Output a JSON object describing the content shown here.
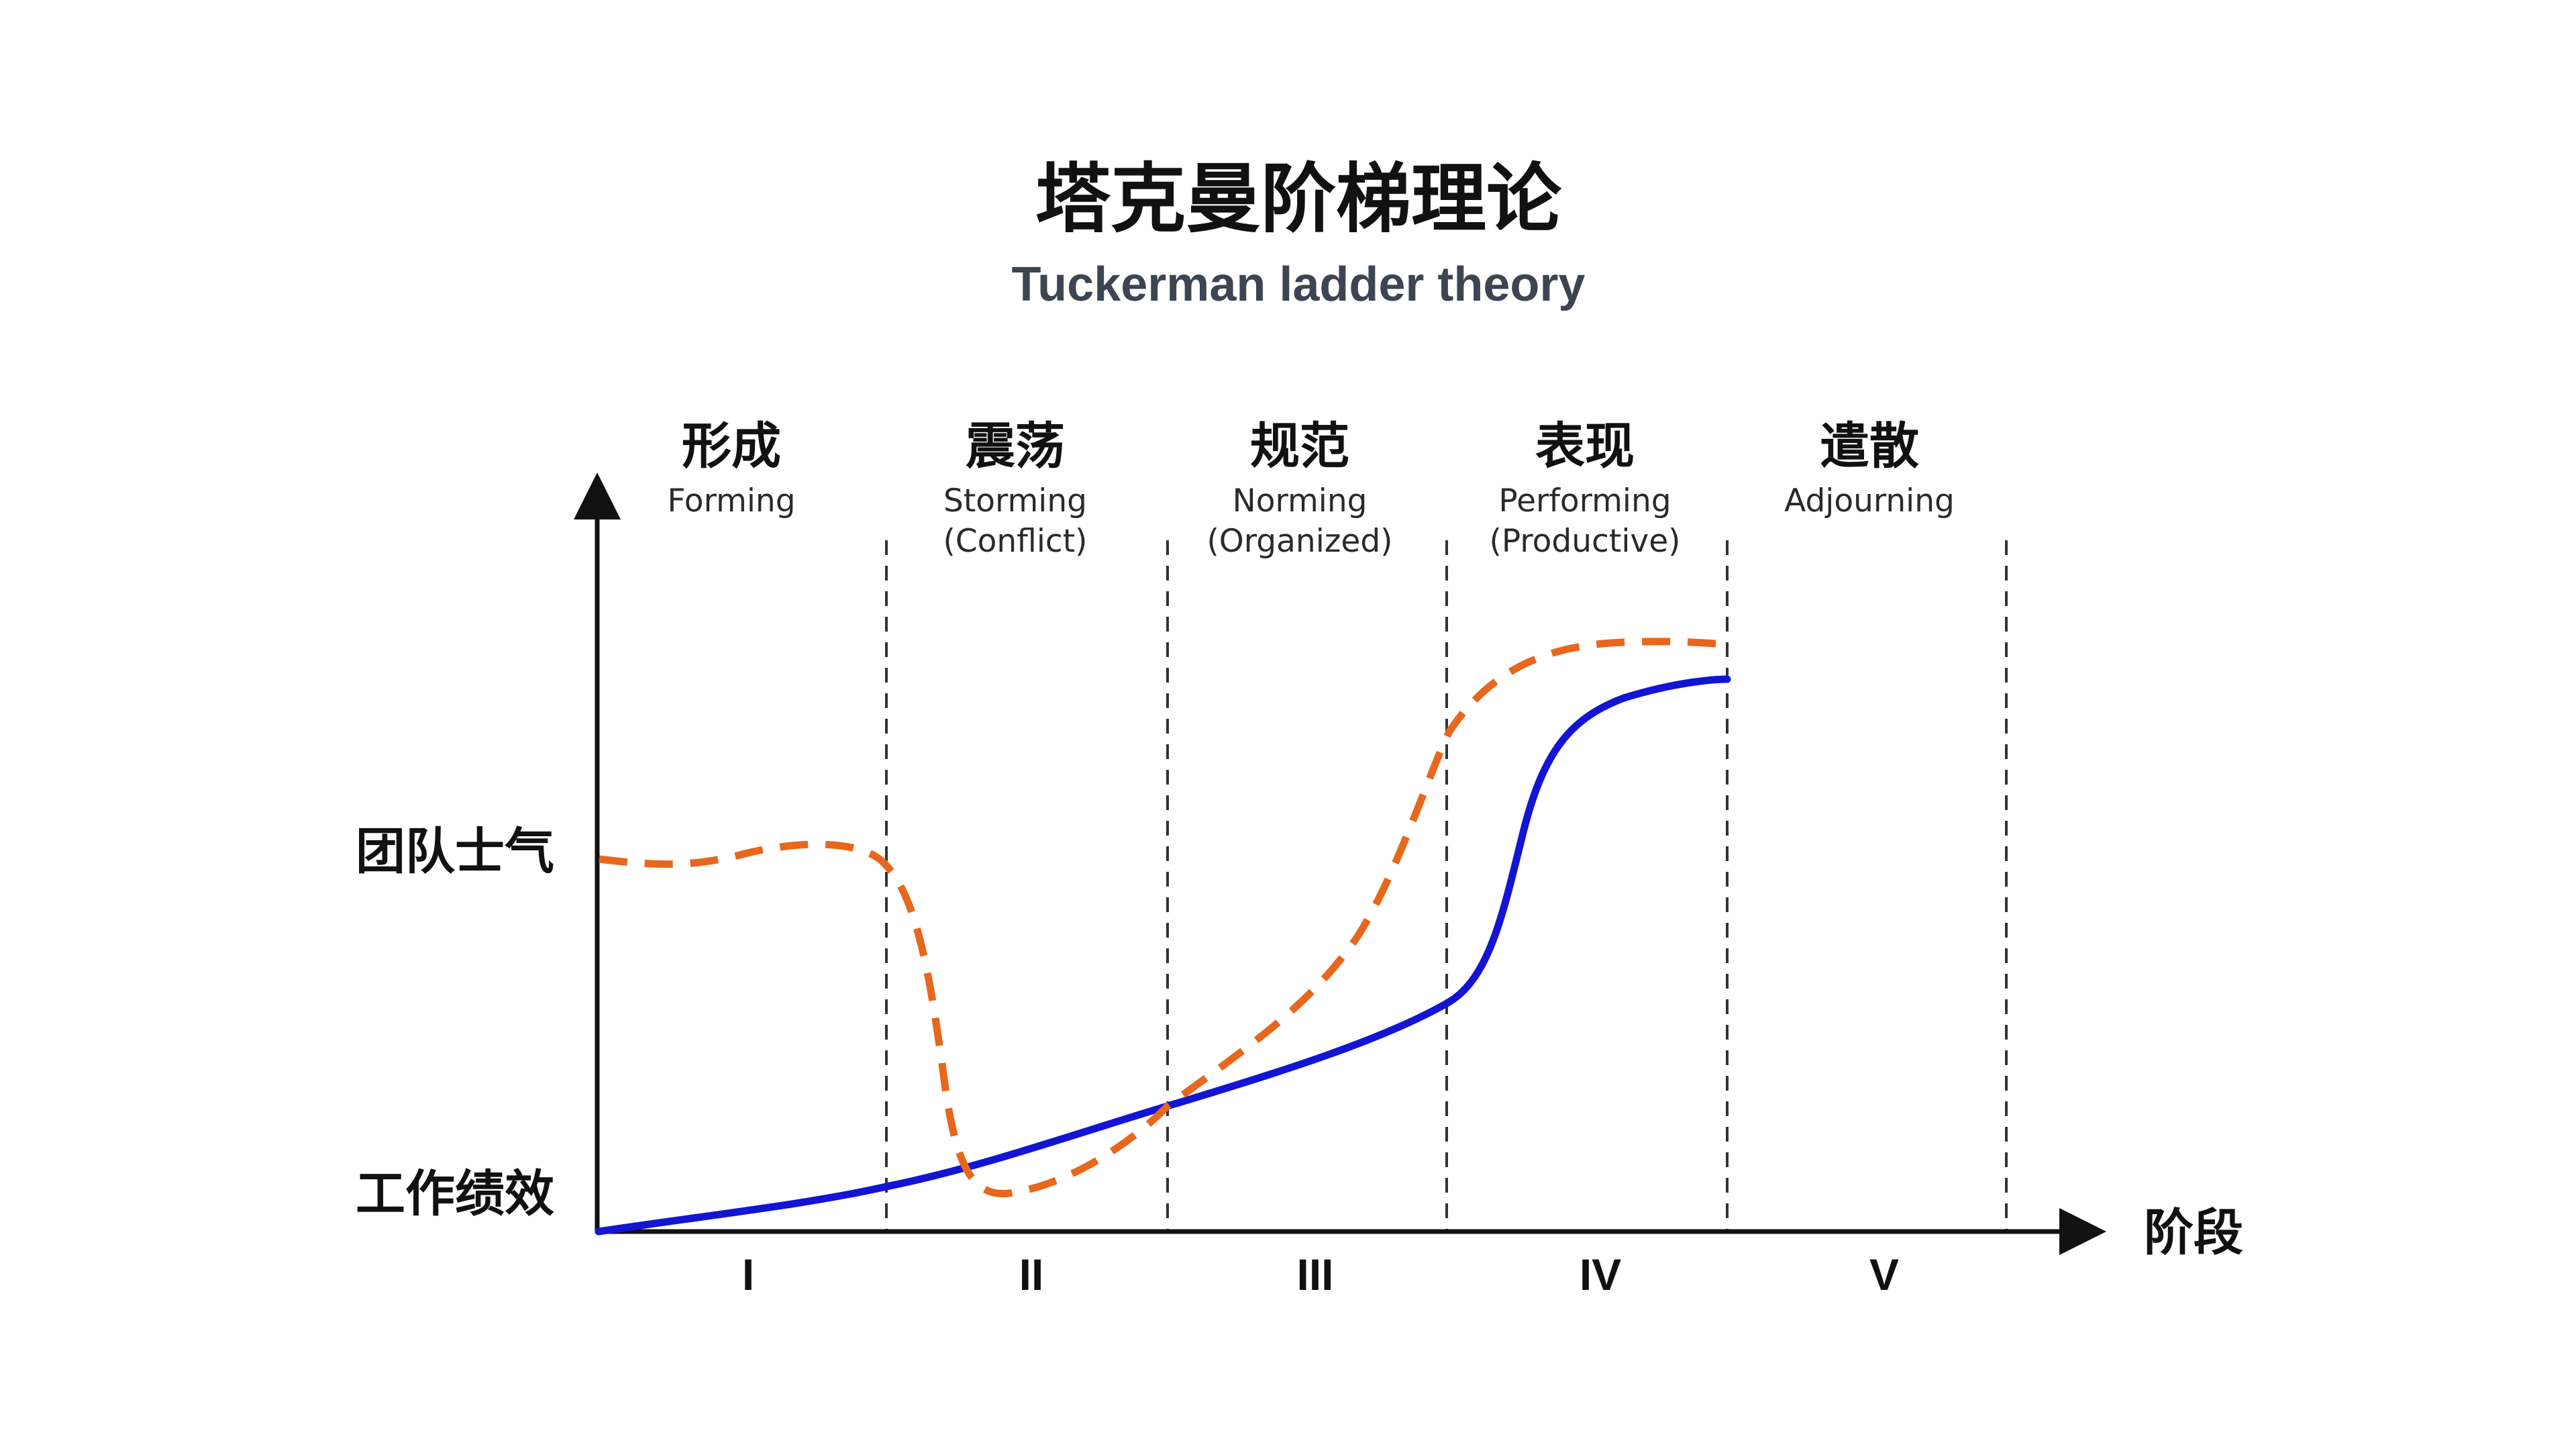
{
  "title_cn": "塔克曼阶梯理论",
  "title_en": "Tuckerman ladder theory",
  "x_axis_label": "阶段",
  "y_labels": {
    "morale": "团队士气",
    "performance": "工作绩效"
  },
  "stages": [
    {
      "roman": "I",
      "cn": "形成",
      "en1": "Forming",
      "en2": ""
    },
    {
      "roman": "II",
      "cn": "震荡",
      "en1": "Storming",
      "en2": "(Conflict)"
    },
    {
      "roman": "III",
      "cn": "规范",
      "en1": "Norming",
      "en2": "(Organized)"
    },
    {
      "roman": "IV",
      "cn": "表现",
      "en1": "Performing",
      "en2": "(Productive)"
    },
    {
      "roman": "V",
      "cn": "遣散",
      "en1": "Adjourning",
      "en2": ""
    }
  ],
  "colors": {
    "morale_curve": "#e8671c",
    "performance_curve": "#1414d4",
    "axis": "#111111",
    "divider": "#333333"
  }
}
